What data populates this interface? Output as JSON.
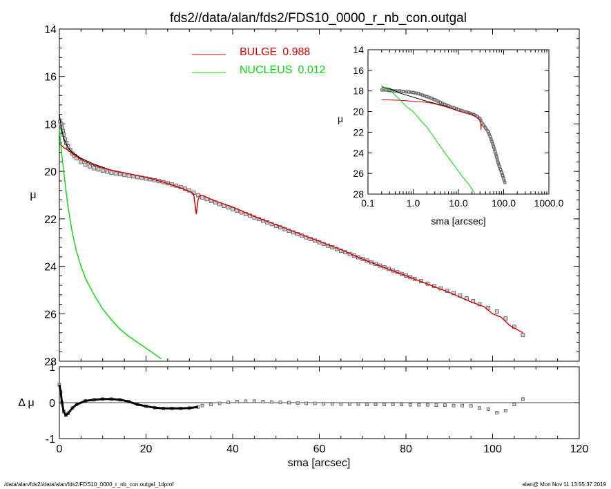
{
  "title": "fds2//data/alan/fds2/FDS10_0000_r_nb_con.outgal",
  "footer_left": "/data/alan/fds2//data/alan/fds2/FDS10_0000_r_nb_con.outgal_1dprof",
  "footer_right": "alan@  Mon Nov 11 13:55:37 2019",
  "colors": {
    "bulge": "#dd0000",
    "nucleus": "#00dd00",
    "data": "#808080",
    "model": "#000000"
  },
  "chart_data": [
    {
      "type": "line",
      "panel": "main",
      "ylabel": "μ",
      "xlim": [
        0,
        120
      ],
      "ylim": [
        28,
        14
      ],
      "x_ticks": [
        "0",
        "20",
        "40",
        "60",
        "80",
        "100",
        "120"
      ],
      "y_ticks": [
        "14",
        "16",
        "18",
        "20",
        "22",
        "24",
        "26",
        "28"
      ],
      "legend": [
        {
          "name": "BULGE",
          "value": "0.988",
          "color": "#dd0000"
        },
        {
          "name": "NUCLEUS",
          "value": "0.012",
          "color": "#00dd00"
        }
      ],
      "series": [
        {
          "name": "BULGE",
          "x": [
            0,
            0.5,
            1,
            2,
            3,
            5,
            8,
            12,
            16,
            20,
            24,
            28,
            30,
            31,
            31.6,
            32,
            32.5,
            33.5,
            36,
            40,
            45,
            50,
            55,
            60,
            65,
            70,
            75,
            80,
            85,
            90,
            95,
            98,
            100,
            102,
            104,
            107
          ],
          "y": [
            18.85,
            18.9,
            19.0,
            19.1,
            19.25,
            19.5,
            19.75,
            19.95,
            20.1,
            20.25,
            20.45,
            20.7,
            20.85,
            20.95,
            21.8,
            21.2,
            21.0,
            21.05,
            21.25,
            21.5,
            21.9,
            22.25,
            22.6,
            22.95,
            23.3,
            23.7,
            24.05,
            24.4,
            24.75,
            25.1,
            25.5,
            25.7,
            26.0,
            26.15,
            26.5,
            26.8
          ]
        },
        {
          "name": "NUCLEUS",
          "x": [
            0,
            0.5,
            1,
            2,
            3,
            4,
            5,
            6,
            8,
            10,
            12,
            14,
            16,
            18,
            20,
            22,
            23.5
          ],
          "y": [
            18.2,
            19.2,
            20.0,
            21.5,
            22.6,
            23.4,
            24.0,
            24.5,
            25.2,
            25.8,
            26.25,
            26.65,
            26.95,
            27.2,
            27.45,
            27.7,
            27.9
          ]
        },
        {
          "name": "data",
          "x": [
            0.2,
            0.4,
            0.6,
            0.8,
            1.0,
            1.3,
            1.6,
            2.0,
            2.5,
            3,
            3.5,
            4,
            5,
            6,
            7,
            8,
            9,
            10,
            11,
            12,
            13,
            14,
            15,
            16,
            17,
            18,
            19,
            20,
            21,
            22,
            23,
            24,
            25,
            26,
            27,
            28,
            29,
            30,
            31,
            32,
            33,
            34,
            35,
            36,
            37,
            38,
            39,
            40,
            41,
            42,
            43,
            44,
            45,
            46,
            47,
            48,
            49,
            50,
            51,
            52,
            53,
            54,
            55,
            56,
            57,
            58,
            59,
            60,
            61,
            62,
            63,
            64,
            65,
            66,
            67,
            68,
            69,
            70,
            71,
            72,
            73,
            74,
            75,
            76,
            77,
            78,
            79,
            80,
            81,
            82,
            83.5,
            85,
            86.5,
            88,
            89.5,
            91,
            92.5,
            94,
            95.5,
            97,
            99,
            101,
            103,
            105,
            107
          ],
          "y": [
            17.9,
            18.0,
            18.15,
            18.3,
            18.45,
            18.65,
            18.8,
            18.95,
            19.1,
            19.25,
            19.35,
            19.45,
            19.6,
            19.72,
            19.8,
            19.87,
            19.92,
            19.97,
            20.01,
            20.05,
            20.09,
            20.12,
            20.15,
            20.18,
            20.21,
            20.24,
            20.27,
            20.3,
            20.33,
            20.37,
            20.41,
            20.45,
            20.5,
            20.55,
            20.6,
            20.66,
            20.73,
            20.8,
            20.9,
            21.0,
            21.1,
            21.17,
            21.24,
            21.31,
            21.38,
            21.45,
            21.52,
            21.59,
            21.66,
            21.73,
            21.8,
            21.87,
            21.94,
            22.01,
            22.08,
            22.15,
            22.22,
            22.29,
            22.36,
            22.43,
            22.5,
            22.57,
            22.64,
            22.71,
            22.78,
            22.85,
            22.92,
            22.99,
            23.06,
            23.13,
            23.2,
            23.27,
            23.34,
            23.41,
            23.48,
            23.55,
            23.62,
            23.69,
            23.76,
            23.83,
            23.9,
            23.97,
            24.04,
            24.11,
            24.18,
            24.25,
            24.32,
            24.39,
            24.46,
            24.53,
            24.63,
            24.73,
            24.83,
            24.93,
            25.03,
            25.13,
            25.23,
            25.35,
            25.47,
            25.6,
            25.75,
            25.9,
            26.2,
            26.55,
            26.9
          ]
        },
        {
          "name": "model",
          "x": [
            0,
            0.5,
            1,
            2,
            3,
            5,
            8,
            12,
            16,
            20,
            24,
            28,
            30,
            31,
            31.6,
            32
          ],
          "y": [
            17.6,
            18.2,
            18.6,
            19.0,
            19.2,
            19.45,
            19.7,
            19.95,
            20.1,
            20.25,
            20.45,
            20.7,
            20.85,
            20.95,
            21.8,
            21.2
          ]
        }
      ]
    },
    {
      "type": "scatter",
      "panel": "residual",
      "ylabel": "Δ μ",
      "xlabel": "sma [arcsec]",
      "xlim": [
        0,
        120
      ],
      "ylim": [
        -1,
        1
      ],
      "x_ticks": [
        "0",
        "20",
        "40",
        "60",
        "80",
        "100",
        "120"
      ],
      "y_ticks": [
        "1",
        "0",
        "-1"
      ],
      "series": [
        {
          "name": "residual_line",
          "x": [
            0,
            0.3,
            0.6,
            1,
            1.5,
            2,
            3,
            4,
            6,
            8,
            10,
            12,
            14,
            16,
            18,
            20,
            22,
            24,
            26,
            28,
            30,
            32
          ],
          "y": [
            0.5,
            0.3,
            0.0,
            -0.25,
            -0.35,
            -0.3,
            -0.15,
            -0.05,
            0.05,
            0.08,
            0.1,
            0.1,
            0.08,
            0.03,
            -0.05,
            -0.1,
            -0.14,
            -0.16,
            -0.16,
            -0.16,
            -0.15,
            -0.12
          ]
        },
        {
          "name": "residual_points",
          "x": [
            33,
            35,
            37,
            39,
            41,
            43,
            45,
            47,
            49,
            51,
            53,
            55,
            57,
            59,
            61,
            63,
            65,
            67,
            69,
            71,
            73,
            75,
            77,
            79,
            81,
            83,
            85,
            87,
            89,
            91,
            93,
            95,
            97,
            99,
            101,
            103,
            105,
            107
          ],
          "y": [
            -0.08,
            -0.05,
            -0.02,
            0.01,
            0.03,
            0.04,
            0.04,
            0.03,
            0.02,
            0.01,
            0.0,
            -0.01,
            -0.02,
            -0.02,
            -0.03,
            -0.03,
            -0.04,
            -0.04,
            -0.04,
            -0.05,
            -0.05,
            -0.05,
            -0.05,
            -0.05,
            -0.06,
            -0.06,
            -0.06,
            -0.07,
            -0.07,
            -0.08,
            -0.08,
            -0.09,
            -0.15,
            -0.18,
            -0.28,
            -0.22,
            -0.05,
            0.1
          ]
        }
      ]
    },
    {
      "type": "line",
      "panel": "inset",
      "ylabel": "μ",
      "xlabel": "sma [arcsec]",
      "xscale": "log",
      "xlim": [
        0.1,
        1000
      ],
      "ylim": [
        28,
        14
      ],
      "x_ticks": [
        "0.1",
        "1.0",
        "10.0",
        "100.0",
        "1000.0"
      ],
      "y_ticks": [
        "14",
        "16",
        "18",
        "20",
        "22",
        "24",
        "26",
        "28"
      ],
      "series": [
        {
          "name": "BULGE",
          "x": [
            0.2,
            0.5,
            1,
            2,
            3,
            5,
            10,
            20,
            28,
            31,
            31.6,
            32
          ],
          "y": [
            18.85,
            18.9,
            19.0,
            19.1,
            19.25,
            19.5,
            19.95,
            20.25,
            20.7,
            20.95,
            21.8,
            21.2
          ]
        },
        {
          "name": "NUCLEUS",
          "x": [
            0.2,
            0.3,
            0.5,
            0.7,
            1,
            1.5,
            2,
            3,
            5,
            8,
            12,
            18,
            23.5
          ],
          "y": [
            17.5,
            17.9,
            18.8,
            19.5,
            20.0,
            20.9,
            21.5,
            22.6,
            24.0,
            25.2,
            26.25,
            27.2,
            28.0
          ]
        },
        {
          "name": "model",
          "x": [
            0.2,
            0.3,
            0.5,
            1,
            2,
            3,
            5,
            10,
            20,
            30
          ],
          "y": [
            17.6,
            17.75,
            18.2,
            18.6,
            19.0,
            19.2,
            19.45,
            19.95,
            20.25,
            20.8
          ]
        },
        {
          "name": "data",
          "x": [
            0.2,
            0.25,
            0.3,
            0.4,
            0.5,
            0.6,
            0.8,
            1.0,
            1.3,
            1.6,
            2,
            2.5,
            3,
            4,
            5,
            6,
            8,
            10,
            12,
            15,
            18,
            22,
            26,
            30,
            33,
            36,
            40,
            45,
            50,
            55,
            60,
            65,
            70,
            75,
            80,
            85,
            90,
            95,
            100,
            107
          ],
          "y": [
            17.9,
            17.9,
            17.95,
            18.0,
            18.0,
            18.05,
            18.1,
            18.15,
            18.25,
            18.4,
            18.55,
            18.7,
            18.85,
            19.1,
            19.3,
            19.45,
            19.65,
            19.8,
            19.92,
            20.05,
            20.15,
            20.3,
            20.45,
            20.7,
            21.1,
            21.3,
            21.6,
            21.9,
            22.4,
            22.9,
            23.4,
            23.9,
            24.4,
            24.9,
            25.3,
            25.6,
            25.9,
            26.2,
            26.5,
            26.9
          ]
        }
      ]
    }
  ]
}
